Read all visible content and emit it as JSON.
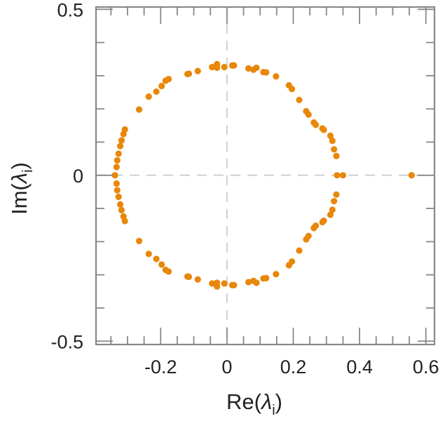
{
  "chart_data": {
    "type": "scatter",
    "title": "",
    "xlabel": "Re(",
    "xlabel_symbol": "λ",
    "xlabel_sub": "i",
    "xlabel_close": ")",
    "ylabel": "Im(",
    "ylabel_symbol": "λ",
    "ylabel_sub": "i",
    "ylabel_close": ")",
    "xlim": [
      -0.395,
      0.626
    ],
    "ylim": [
      -0.51,
      0.507
    ],
    "xticks": [
      -0.2,
      0,
      0.2,
      0.4,
      0.6
    ],
    "xtick_labels": [
      "-0.2",
      "0",
      "0.2",
      "0.4",
      "0.6"
    ],
    "xminor_step": 0.05,
    "yticks": [
      0.5,
      0,
      -0.5
    ],
    "ytick_labels": [
      "0.5",
      "0",
      "-0.5"
    ],
    "yminor_step": 0.1,
    "grid": false,
    "reference_lines": {
      "x": 0,
      "y": 0
    },
    "marker_color": "#e8870a",
    "axis_color": "#888888",
    "refline_color": "#d0d0d0",
    "points_upper": [
      [
        -0.333,
        0.025
      ],
      [
        -0.331,
        0.045
      ],
      [
        -0.327,
        0.065
      ],
      [
        -0.322,
        0.088
      ],
      [
        -0.318,
        0.105
      ],
      [
        -0.312,
        0.124
      ],
      [
        -0.308,
        0.138
      ],
      [
        -0.265,
        0.198
      ],
      [
        -0.236,
        0.237
      ],
      [
        -0.213,
        0.252
      ],
      [
        -0.197,
        0.269
      ],
      [
        -0.185,
        0.285
      ],
      [
        -0.176,
        0.29
      ],
      [
        -0.119,
        0.305
      ],
      [
        -0.115,
        0.306
      ],
      [
        -0.088,
        0.314
      ],
      [
        -0.045,
        0.326
      ],
      [
        -0.03,
        0.335
      ],
      [
        -0.03,
        0.324
      ],
      [
        -0.008,
        0.326
      ],
      [
        0.016,
        0.331
      ],
      [
        0.021,
        0.331
      ],
      [
        0.065,
        0.322
      ],
      [
        0.08,
        0.318
      ],
      [
        0.089,
        0.324
      ],
      [
        0.11,
        0.311
      ],
      [
        0.118,
        0.31
      ],
      [
        0.148,
        0.298
      ],
      [
        0.187,
        0.271
      ],
      [
        0.196,
        0.26
      ],
      [
        0.218,
        0.227
      ],
      [
        0.239,
        0.193
      ],
      [
        0.246,
        0.183
      ],
      [
        0.262,
        0.159
      ],
      [
        0.268,
        0.152
      ],
      [
        0.288,
        0.141
      ],
      [
        0.292,
        0.137
      ],
      [
        0.312,
        0.119
      ],
      [
        0.318,
        0.104
      ],
      [
        0.323,
        0.078
      ],
      [
        0.33,
        0.058
      ]
    ],
    "points_real": [
      -0.338,
      0.332,
      0.35,
      0.557
    ]
  }
}
